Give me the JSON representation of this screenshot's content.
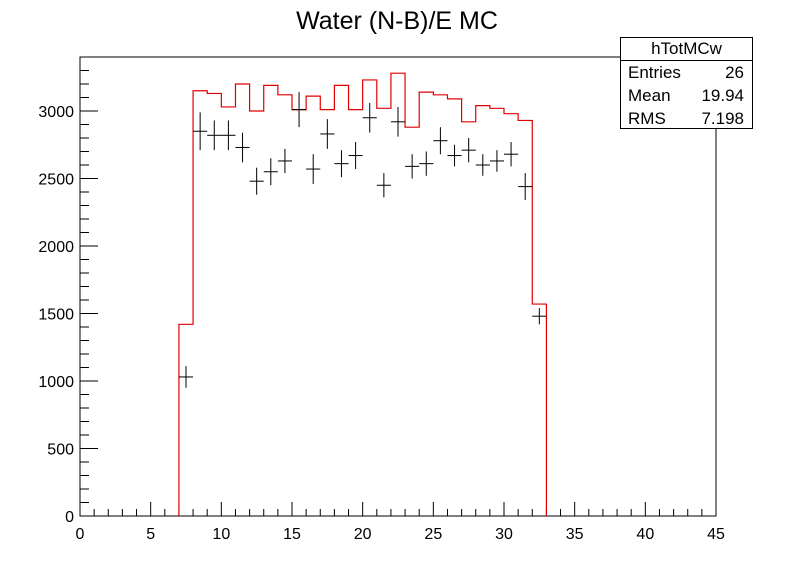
{
  "chart_data": {
    "type": "histogram",
    "title": "Water (N-B)/E MC",
    "xlabel": "",
    "ylabel": "",
    "xlim": [
      0,
      45
    ],
    "ylim": [
      0,
      3400
    ],
    "x_ticks": [
      0,
      5,
      10,
      15,
      20,
      25,
      30,
      35,
      40,
      45
    ],
    "y_ticks": [
      0,
      500,
      1000,
      1500,
      2000,
      2500,
      3000
    ],
    "grid": false,
    "series": [
      {
        "style": "step-line",
        "color": "#e00000",
        "bin_edges": [
          7,
          8,
          9,
          10,
          11,
          12,
          13,
          14,
          15,
          16,
          17,
          18,
          19,
          20,
          21,
          22,
          23,
          24,
          25,
          26,
          27,
          28,
          29,
          30,
          31,
          32,
          33
        ],
        "values": [
          1420,
          3150,
          3130,
          3030,
          3200,
          3000,
          3190,
          3120,
          3010,
          3110,
          3010,
          3190,
          3010,
          3230,
          3020,
          3280,
          2880,
          3140,
          3120,
          3090,
          2920,
          3040,
          3020,
          2980,
          2930,
          1570
        ]
      },
      {
        "style": "points-with-errors",
        "color": "#000000",
        "x": [
          7.5,
          8.5,
          9.5,
          10.5,
          11.5,
          12.5,
          13.5,
          14.5,
          15.5,
          16.5,
          17.5,
          18.5,
          19.5,
          20.5,
          21.5,
          22.5,
          23.5,
          24.5,
          25.5,
          26.5,
          27.5,
          28.5,
          29.5,
          30.5,
          31.5,
          32.5
        ],
        "y": [
          1030,
          2850,
          2820,
          2820,
          2730,
          2480,
          2550,
          2630,
          3010,
          2570,
          2830,
          2610,
          2670,
          2950,
          2450,
          2920,
          2590,
          2610,
          2780,
          2670,
          2710,
          2600,
          2630,
          2680,
          2440,
          1480
        ],
        "y_err": [
          80,
          140,
          110,
          110,
          110,
          100,
          100,
          90,
          130,
          110,
          110,
          100,
          100,
          110,
          90,
          110,
          90,
          90,
          100,
          80,
          90,
          80,
          80,
          90,
          100,
          60
        ]
      }
    ],
    "stats": {
      "name": "hTotMCw",
      "rows": [
        {
          "label": "Entries",
          "value": "26"
        },
        {
          "label": "Mean",
          "value": "19.94"
        },
        {
          "label": "RMS",
          "value": "7.198"
        }
      ]
    }
  }
}
